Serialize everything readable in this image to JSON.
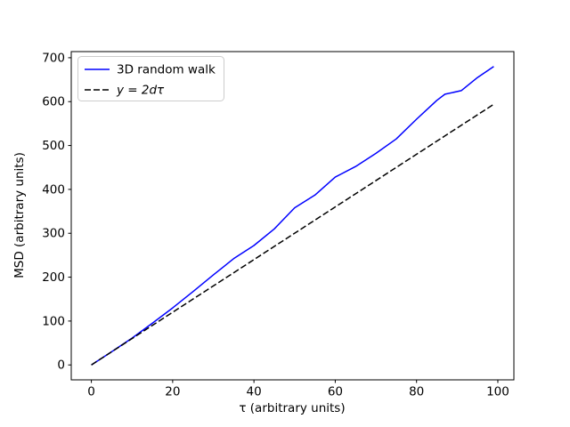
{
  "figure": {
    "background": "#ffffff"
  },
  "chart_data": {
    "type": "line",
    "title": "",
    "xlabel": "τ (arbitrary units)",
    "ylabel": "MSD (arbitrary units)",
    "xlim": [
      -4.95,
      103.95
    ],
    "ylim": [
      -34,
      714
    ],
    "xticks": [
      0,
      20,
      40,
      60,
      80,
      100
    ],
    "yticks": [
      0,
      100,
      200,
      300,
      400,
      500,
      600,
      700
    ],
    "grid": false,
    "legend_position": "upper left",
    "series": [
      {
        "name": "3D random walk",
        "color": "#0000ff",
        "style": "solid",
        "x": [
          0,
          5,
          10,
          15,
          20,
          25,
          30,
          35,
          40,
          45,
          50,
          55,
          60,
          65,
          70,
          75,
          80,
          85,
          87,
          91,
          95,
          99
        ],
        "y": [
          0,
          30,
          61,
          95,
          130,
          167,
          205,
          242,
          272,
          310,
          358,
          387,
          428,
          452,
          482,
          515,
          560,
          603,
          617,
          625,
          655,
          680
        ]
      },
      {
        "name": "y = 2dτ",
        "color": "#000000",
        "style": "dashed",
        "x": [
          0,
          99
        ],
        "y": [
          0,
          594
        ]
      }
    ]
  }
}
